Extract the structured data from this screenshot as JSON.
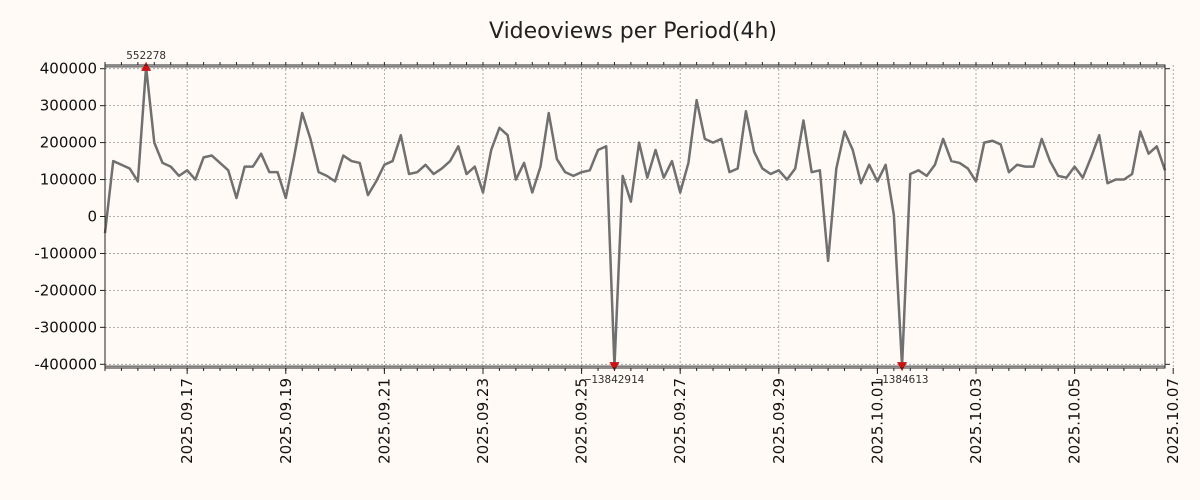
{
  "chart_data": {
    "type": "line",
    "title": "Videoviews per Period(4h)",
    "xlabel": "",
    "ylabel": "",
    "ylim": [
      -410000,
      410000
    ],
    "ytick_values": [
      400000,
      300000,
      200000,
      100000,
      0,
      -100000,
      -200000,
      -300000,
      -400000
    ],
    "ytick_labels": [
      "400000",
      "300000",
      "200000",
      "100000",
      "0",
      "-100000",
      "-200000",
      "-300000",
      "-400000"
    ],
    "xtick_labels": [
      "2025.09.17",
      "2025.09.19",
      "2025.09.21",
      "2025.09.23",
      "2025.09.25",
      "2025.09.27",
      "2025.09.29",
      "2025.10.01",
      "2025.10.03",
      "2025.10.05",
      "2025.10.07"
    ],
    "xtick_index": [
      10,
      22,
      34,
      46,
      58,
      70,
      82,
      94,
      106,
      118,
      130
    ],
    "grid": true,
    "line_color": "#707070",
    "marker_color": "#cc1111",
    "hlines": [
      405000,
      -405000
    ],
    "series": [
      {
        "name": "Videoviews",
        "values": [
          -45000,
          150000,
          140000,
          130000,
          95000,
          405000,
          200000,
          145000,
          135000,
          110000,
          125000,
          100000,
          160000,
          165000,
          145000,
          125000,
          50000,
          135000,
          135000,
          170000,
          120000,
          120000,
          50000,
          160000,
          280000,
          210000,
          120000,
          110000,
          95000,
          165000,
          150000,
          145000,
          58000,
          95000,
          140000,
          150000,
          220000,
          115000,
          120000,
          140000,
          115000,
          130000,
          150000,
          190000,
          115000,
          135000,
          65000,
          180000,
          240000,
          220000,
          100000,
          145000,
          65000,
          135000,
          280000,
          155000,
          120000,
          110000,
          120000,
          125000,
          180000,
          190000,
          -405000,
          110000,
          40000,
          200000,
          105000,
          180000,
          105000,
          150000,
          65000,
          145000,
          315000,
          210000,
          200000,
          210000,
          120000,
          130000,
          285000,
          175000,
          130000,
          115000,
          125000,
          100000,
          130000,
          260000,
          120000,
          125000,
          -120000,
          130000,
          230000,
          180000,
          90000,
          140000,
          95000,
          140000,
          5000,
          -405000,
          115000,
          125000,
          110000,
          140000,
          210000,
          150000,
          145000,
          130000,
          95000,
          200000,
          205000,
          195000,
          120000,
          140000,
          135000,
          135000,
          210000,
          150000,
          110000,
          105000,
          135000,
          105000,
          160000,
          220000,
          90000,
          100000,
          100000,
          115000,
          230000,
          170000,
          190000,
          125000
        ]
      }
    ],
    "annotations": [
      {
        "index": 5,
        "value": 405000,
        "label": "552278",
        "position": "above"
      },
      {
        "index": 62,
        "value": -405000,
        "label": "−13842914",
        "position": "below"
      },
      {
        "index": 97,
        "value": -405000,
        "label": "−1384613",
        "position": "below"
      }
    ]
  }
}
